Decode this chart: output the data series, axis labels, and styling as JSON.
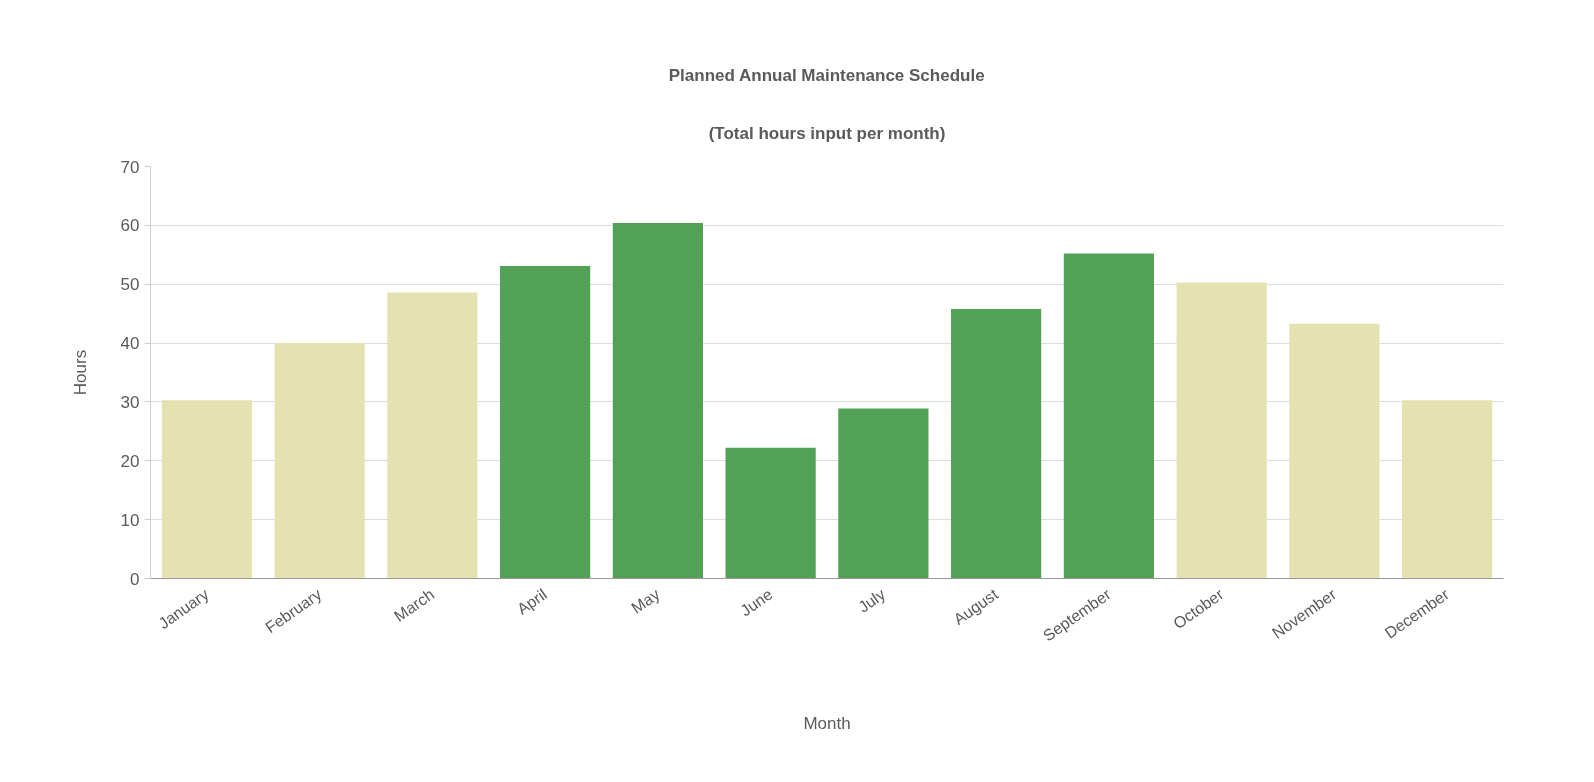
{
  "chart_data": {
    "type": "bar",
    "title": "Planned Annual Maintenance Schedule",
    "subtitle": "(Total hours input per month)",
    "xlabel": "Month",
    "ylabel": "Hours",
    "categories": [
      "January",
      "February",
      "March",
      "April",
      "May",
      "June",
      "July",
      "August",
      "September",
      "October",
      "November",
      "December"
    ],
    "values": [
      30.3,
      40,
      48.6,
      53.1,
      60.4,
      22.2,
      28.9,
      45.8,
      55.2,
      50.3,
      43.3,
      30.3
    ],
    "colors": [
      "#e4e2b1",
      "#e4e2b1",
      "#e4e2b1",
      "#53a157",
      "#53a157",
      "#53a157",
      "#53a157",
      "#53a157",
      "#53a157",
      "#e4e2b1",
      "#e4e2b1",
      "#e4e2b1"
    ],
    "ylim": [
      0,
      70
    ],
    "yticks": [
      0,
      10,
      20,
      30,
      40,
      50,
      60,
      70
    ],
    "grid": "y"
  }
}
